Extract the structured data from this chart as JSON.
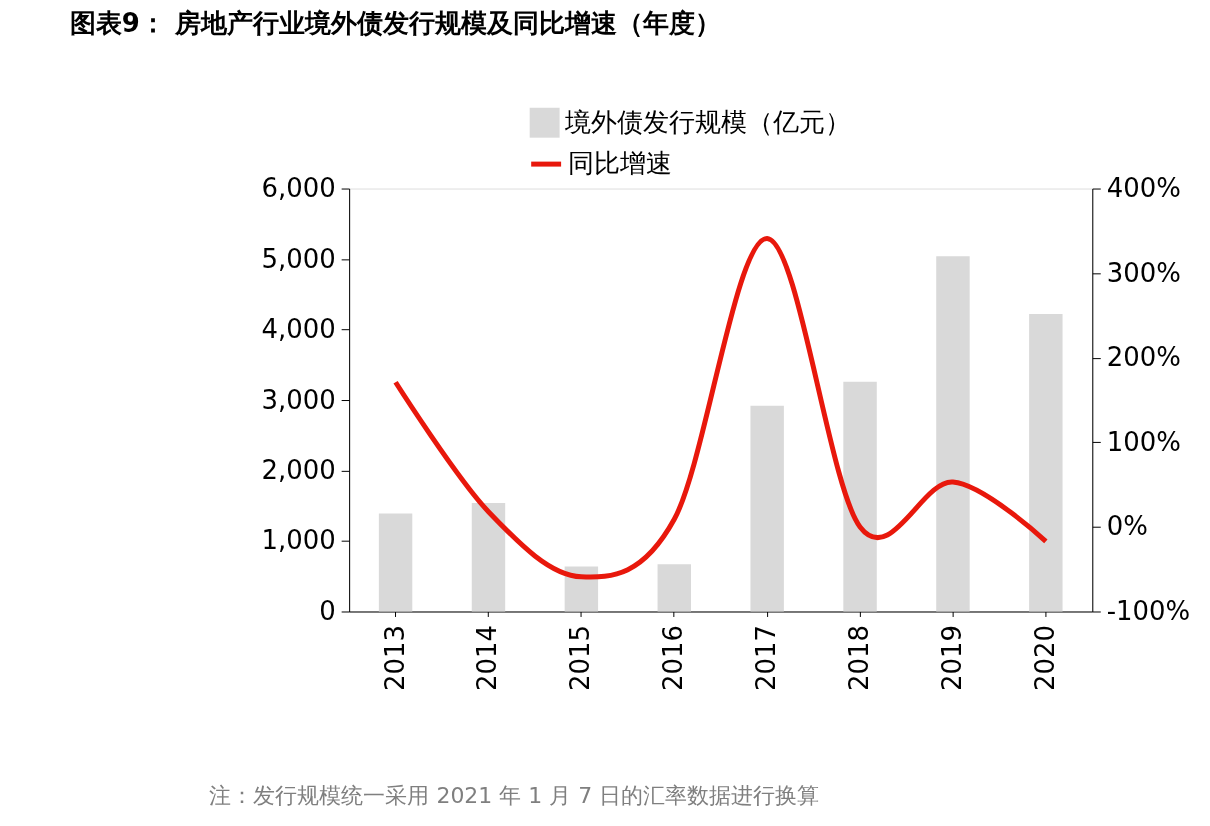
{
  "chart_data": {
    "type": "bar",
    "title": "图表9：  房地产行业境外债发行规模及同比增速（年度）",
    "categories": [
      "2013",
      "2014",
      "2015",
      "2016",
      "2017",
      "2018",
      "2019",
      "2020"
    ],
    "series": [
      {
        "name": "境外债发行规模（亿元）",
        "color": "#d9d9d9",
        "values": [
          1390,
          1540,
          640,
          670,
          2920,
          3260,
          5040,
          4220
        ]
      },
      {
        "name": "同比增速",
        "type": "line",
        "axis": "y2",
        "color": "#e8180c",
        "values": [
          171,
          18,
          -59,
          9,
          341,
          0,
          53,
          -17
        ]
      }
    ],
    "ylim": [
      0,
      6000
    ],
    "yticks": [
      0,
      {
        "value": 1000,
        "label": "1,000"
      },
      {
        "value": 2000,
        "label": "2,000"
      },
      {
        "value": 3000,
        "label": "3,000"
      },
      {
        "value": 4000,
        "label": "4,000"
      },
      {
        "value": 5000,
        "label": "5,000"
      },
      {
        "value": 6000,
        "label": "6,000"
      }
    ],
    "y2lim": [
      -100,
      400
    ],
    "y2ticks": [
      {
        "value": -100,
        "label": "-100%"
      },
      {
        "value": 0,
        "label": "0%"
      },
      {
        "value": 100,
        "label": "100%"
      },
      {
        "value": 200,
        "label": "200%"
      },
      {
        "value": 300,
        "label": "300%"
      },
      {
        "value": 400,
        "label": "400%"
      }
    ],
    "grid": false,
    "legend": "top left",
    "line_style": "solid",
    "marker": "none",
    "annotations": [
      "注：发行规模统一采用 2021 年 1 月 7 日的汇率数据进行换算"
    ]
  }
}
